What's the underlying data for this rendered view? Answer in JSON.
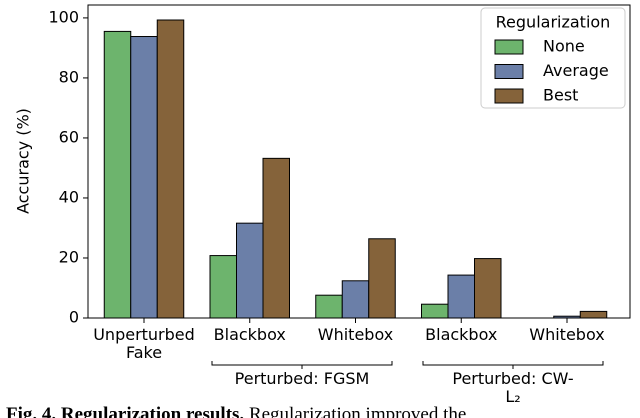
{
  "chart_data": {
    "type": "bar",
    "ylabel": "Accuracy (%)",
    "categories": [
      "Unperturbed\nFake",
      "Blackbox",
      "Whitebox",
      "Blackbox",
      "Whitebox"
    ],
    "group_labels": [
      "Perturbed: FGSM",
      "Perturbed: CW-L₂"
    ],
    "series": [
      {
        "name": "None",
        "color": "#6db46d",
        "values": [
          95.5,
          20.8,
          7.6,
          4.6,
          0
        ]
      },
      {
        "name": "Average",
        "color": "#6b7fa8",
        "values": [
          93.8,
          31.6,
          12.4,
          14.3,
          0.6
        ]
      },
      {
        "name": "Best",
        "color": "#85633a",
        "values": [
          99.3,
          53.2,
          26.4,
          19.8,
          2.2
        ]
      }
    ],
    "legend_title": "Regularization",
    "legend": "upper right",
    "ylim": [
      0,
      104.3
    ],
    "yticks": [
      0,
      20,
      40,
      60,
      80,
      100
    ]
  },
  "caption": {
    "label": "Fig. 4. Regularization results.",
    "text": "Regularization improved the"
  }
}
